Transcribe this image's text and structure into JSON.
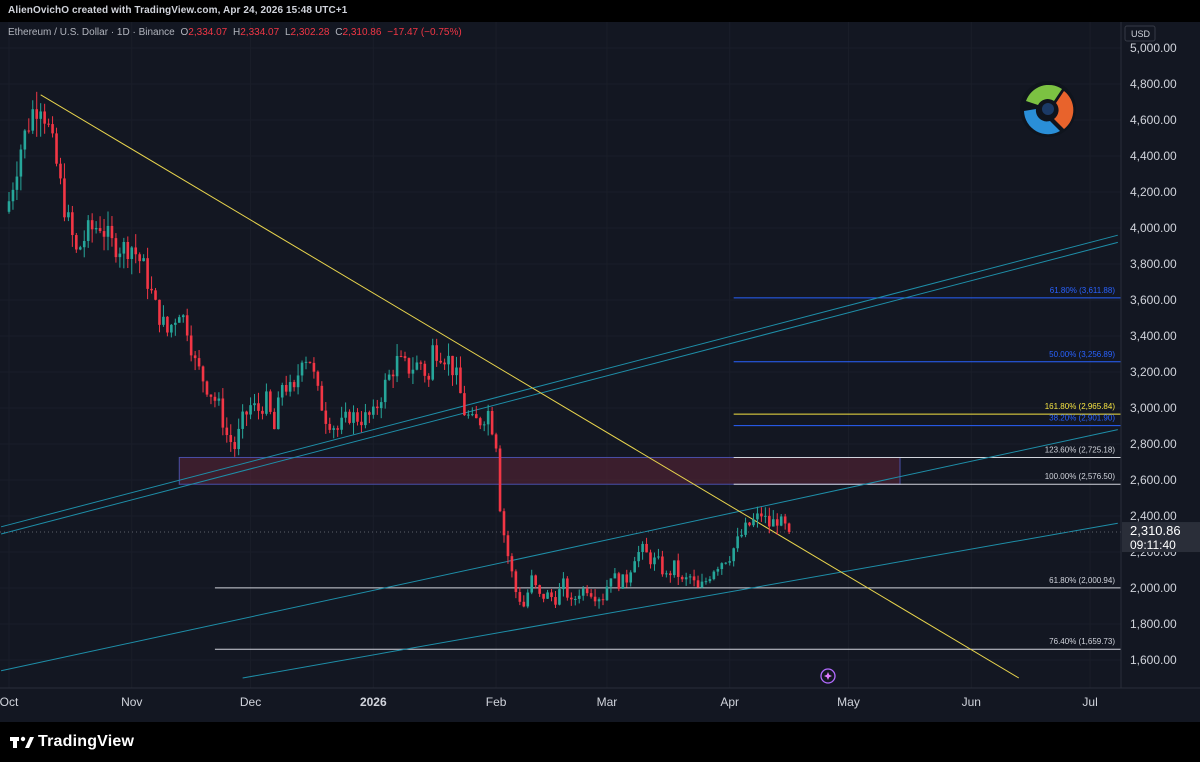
{
  "header": {
    "credit": "AlienOvichO created with TradingView.com, Apr 24, 2026 15:48 UTC+1"
  },
  "legend": {
    "symbol": "Ethereum / U.S. Dollar · 1D · Binance",
    "o_label": "O",
    "open": "2,334.07",
    "h_label": "H",
    "high": "2,334.07",
    "l_label": "L",
    "low": "2,302.28",
    "c_label": "C",
    "close": "2,310.86",
    "change": "−17.47 (−0.75%)"
  },
  "footer": {
    "brand": "TradingView"
  },
  "colors": {
    "background": "#131722",
    "up": "#26a69a",
    "down": "#f23645",
    "trendline": "#e8d44d",
    "channel": "#1e8ea8",
    "fib_blue": "#2962ff",
    "zone": "#5d2437"
  },
  "chart_data": {
    "type": "candlestick",
    "symbol": "ETHUSD",
    "timeframe": "1D",
    "exchange": "Binance",
    "currency": "USD",
    "ylim": [
      1500,
      5000
    ],
    "y_ticks": [
      1600,
      1800,
      2000,
      2200,
      2400,
      2600,
      2800,
      3000,
      3200,
      3400,
      3600,
      3800,
      4000,
      4200,
      4400,
      4600,
      4800,
      5000
    ],
    "y_tick_labels": [
      "1,600.00",
      "1,800.00",
      "2,000.00",
      "2,200.00",
      "2,400.00",
      "2,600.00",
      "2,800.00",
      "3,000.00",
      "3,200.00",
      "3,400.00",
      "3,600.00",
      "3,800.00",
      "4,000.00",
      "4,200.00",
      "4,400.00",
      "4,600.00",
      "4,800.00",
      "5,000.00"
    ],
    "x_labels": [
      {
        "label": "Oct",
        "day": 0
      },
      {
        "label": "Nov",
        "day": 31
      },
      {
        "label": "Dec",
        "day": 61
      },
      {
        "label": "2026",
        "day": 92
      },
      {
        "label": "Feb",
        "day": 123
      },
      {
        "label": "Mar",
        "day": 151
      },
      {
        "label": "Apr",
        "day": 182
      },
      {
        "label": "May",
        "day": 212
      },
      {
        "label": "Jun",
        "day": 243
      },
      {
        "label": "Jul",
        "day": 273
      }
    ],
    "x_range_days": [
      -1,
      280
    ],
    "last_price": 2310.86,
    "last_price_label": "2,310.86",
    "countdown": "09:11:40",
    "price_keyframes": [
      [
        0,
        4150
      ],
      [
        3,
        4450
      ],
      [
        6,
        4650
      ],
      [
        8,
        4710
      ],
      [
        10,
        4550
      ],
      [
        12,
        4350
      ],
      [
        14,
        4120
      ],
      [
        17,
        3860
      ],
      [
        20,
        3980
      ],
      [
        23,
        4020
      ],
      [
        26,
        3910
      ],
      [
        29,
        3890
      ],
      [
        31,
        3900
      ],
      [
        34,
        3780
      ],
      [
        37,
        3560
      ],
      [
        40,
        3420
      ],
      [
        43,
        3550
      ],
      [
        45,
        3450
      ],
      [
        47,
        3250
      ],
      [
        50,
        3120
      ],
      [
        53,
        3010
      ],
      [
        55,
        2850
      ],
      [
        57,
        2780
      ],
      [
        59,
        2930
      ],
      [
        61,
        3010
      ],
      [
        63,
        2990
      ],
      [
        65,
        3040
      ],
      [
        67,
        2880
      ],
      [
        69,
        3140
      ],
      [
        72,
        3080
      ],
      [
        74,
        3300
      ],
      [
        76,
        3270
      ],
      [
        78,
        3080
      ],
      [
        80,
        2950
      ],
      [
        83,
        2880
      ],
      [
        86,
        2960
      ],
      [
        89,
        2940
      ],
      [
        92,
        2960
      ],
      [
        95,
        3130
      ],
      [
        98,
        3260
      ],
      [
        101,
        3220
      ],
      [
        104,
        3250
      ],
      [
        106,
        3150
      ],
      [
        107,
        3330
      ],
      [
        109,
        3310
      ],
      [
        111,
        3270
      ],
      [
        113,
        3170
      ],
      [
        115,
        2980
      ],
      [
        117,
        2920
      ],
      [
        119,
        2930
      ],
      [
        121,
        2980
      ],
      [
        123,
        2810
      ],
      [
        124,
        2460
      ],
      [
        125,
        2300
      ],
      [
        126,
        2180
      ],
      [
        128,
        1980
      ],
      [
        130,
        1900
      ],
      [
        132,
        2050
      ],
      [
        134,
        1950
      ],
      [
        136,
        1960
      ],
      [
        138,
        1940
      ],
      [
        140,
        2020
      ],
      [
        142,
        1910
      ],
      [
        144,
        1980
      ],
      [
        146,
        2000
      ],
      [
        148,
        1960
      ],
      [
        150,
        1950
      ],
      [
        152,
        2080
      ],
      [
        154,
        2030
      ],
      [
        156,
        2050
      ],
      [
        158,
        2180
      ],
      [
        160,
        2210
      ],
      [
        162,
        2160
      ],
      [
        164,
        2140
      ],
      [
        166,
        2060
      ],
      [
        168,
        2120
      ],
      [
        170,
        2030
      ],
      [
        172,
        2060
      ],
      [
        174,
        1990
      ],
      [
        176,
        2040
      ],
      [
        178,
        2110
      ],
      [
        180,
        2150
      ],
      [
        182,
        2180
      ],
      [
        184,
        2260
      ],
      [
        186,
        2330
      ],
      [
        188,
        2370
      ],
      [
        190,
        2410
      ],
      [
        192,
        2350
      ],
      [
        194,
        2380
      ],
      [
        196,
        2335
      ],
      [
        197,
        2311
      ]
    ],
    "candles_end_day": 197,
    "trendline": {
      "from": {
        "day": 8,
        "price": 4740
      },
      "to": {
        "day": 255,
        "price": 1500
      }
    },
    "channels": [
      {
        "from": {
          "day": -2,
          "price": 2340
        },
        "to": {
          "day": 280,
          "price": 3960
        }
      },
      {
        "from": {
          "day": -2,
          "price": 2300
        },
        "to": {
          "day": 280,
          "price": 3920
        }
      },
      {
        "from": {
          "day": -2,
          "price": 1540
        },
        "to": {
          "day": 280,
          "price": 2880
        }
      },
      {
        "from": {
          "day": 59,
          "price": 1500
        },
        "to": {
          "day": 280,
          "price": 2360
        }
      }
    ],
    "zone": {
      "from_day": 43,
      "to_day": 225,
      "low": 2576.5,
      "high": 2725.18
    },
    "fib_levels": [
      {
        "label": "61.80% (3,611.88)",
        "price": 3611.88,
        "from_day": 183,
        "color": "#2962ff"
      },
      {
        "label": "50.00% (3,256.89)",
        "price": 3256.89,
        "from_day": 183,
        "color": "#2962ff"
      },
      {
        "label": "161.80% (2,965.84)",
        "price": 2965.84,
        "from_day": 183,
        "color": "#f5e342"
      },
      {
        "label": "38.20% (2,901.90)",
        "price": 2901.9,
        "from_day": 183,
        "color": "#2962ff"
      },
      {
        "label": "123.60% (2,725.18)",
        "price": 2725.18,
        "from_day": 183,
        "color": "#d1d4dc"
      },
      {
        "label": "100.00% (2,576.50)",
        "price": 2576.5,
        "from_day": 183,
        "color": "#d1d4dc"
      },
      {
        "label": "61.80% (2,000.94)",
        "price": 2000.94,
        "from_day": 52,
        "color": "#d1d4dc"
      },
      {
        "label": "76.40% (1,659.73)",
        "price": 1659.73,
        "from_day": 52,
        "color": "#d1d4dc"
      }
    ]
  }
}
